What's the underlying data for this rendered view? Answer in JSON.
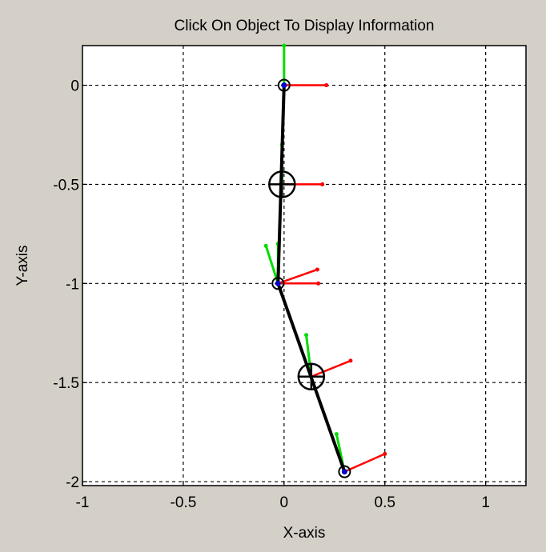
{
  "window": {
    "background": "#d4d0c8"
  },
  "chart_data": {
    "type": "scatter",
    "title": "Click On Object To Display Information",
    "xlabel": "X-axis",
    "ylabel": "Y-axis",
    "xlim": [
      -1,
      1.2
    ],
    "ylim": [
      -2.02,
      0.2
    ],
    "x_ticks": [
      -1,
      -0.5,
      0,
      0.5,
      1
    ],
    "x_tick_labels": [
      "-1",
      "-0.5",
      "0",
      "0.5",
      "1"
    ],
    "y_ticks": [
      0,
      -0.5,
      -1,
      -1.5,
      -2
    ],
    "y_tick_labels": [
      "0",
      "-0.5",
      "-1",
      "-1.5",
      "-2"
    ],
    "grid": true,
    "links": [
      {
        "from": [
          0.0,
          0.0
        ],
        "to": [
          -0.03,
          -1.0
        ]
      },
      {
        "from": [
          -0.03,
          -1.0
        ],
        "to": [
          0.3,
          -1.95
        ]
      }
    ],
    "joints": [
      [
        0.0,
        0.0
      ],
      [
        -0.03,
        -1.0
      ],
      [
        0.3,
        -1.95
      ]
    ],
    "centers_of_mass": [
      [
        -0.01,
        -0.5
      ],
      [
        0.135,
        -1.47
      ]
    ],
    "vectors_red": [
      {
        "from": [
          0.0,
          0.0
        ],
        "to": [
          0.21,
          0.0
        ]
      },
      {
        "from": [
          -0.01,
          -0.5
        ],
        "to": [
          0.19,
          -0.5
        ]
      },
      {
        "from": [
          -0.03,
          -1.0
        ],
        "to": [
          0.17,
          -1.0
        ]
      },
      {
        "from": [
          -0.03,
          -1.0
        ],
        "to": [
          0.165,
          -0.93
        ]
      },
      {
        "from": [
          0.135,
          -1.47
        ],
        "to": [
          0.33,
          -1.39
        ]
      },
      {
        "from": [
          0.3,
          -1.95
        ],
        "to": [
          0.5,
          -1.86
        ]
      }
    ],
    "vectors_green": [
      {
        "from": [
          0.0,
          0.0
        ],
        "to": [
          0.0,
          0.2
        ]
      },
      {
        "from": [
          -0.01,
          -0.5
        ],
        "to": [
          -0.01,
          -0.3
        ]
      },
      {
        "from": [
          -0.03,
          -1.0
        ],
        "to": [
          -0.03,
          -0.8
        ]
      },
      {
        "from": [
          -0.03,
          -1.0
        ],
        "to": [
          -0.09,
          -0.81
        ]
      },
      {
        "from": [
          0.135,
          -1.47
        ],
        "to": [
          0.11,
          -1.26
        ]
      },
      {
        "from": [
          0.3,
          -1.95
        ],
        "to": [
          0.26,
          -1.76
        ]
      }
    ],
    "colors": {
      "link": "#000000",
      "force": "#ff0000",
      "velocity": "#00dd00",
      "joint_dot": "#0000cc",
      "grid": "#000000"
    }
  }
}
